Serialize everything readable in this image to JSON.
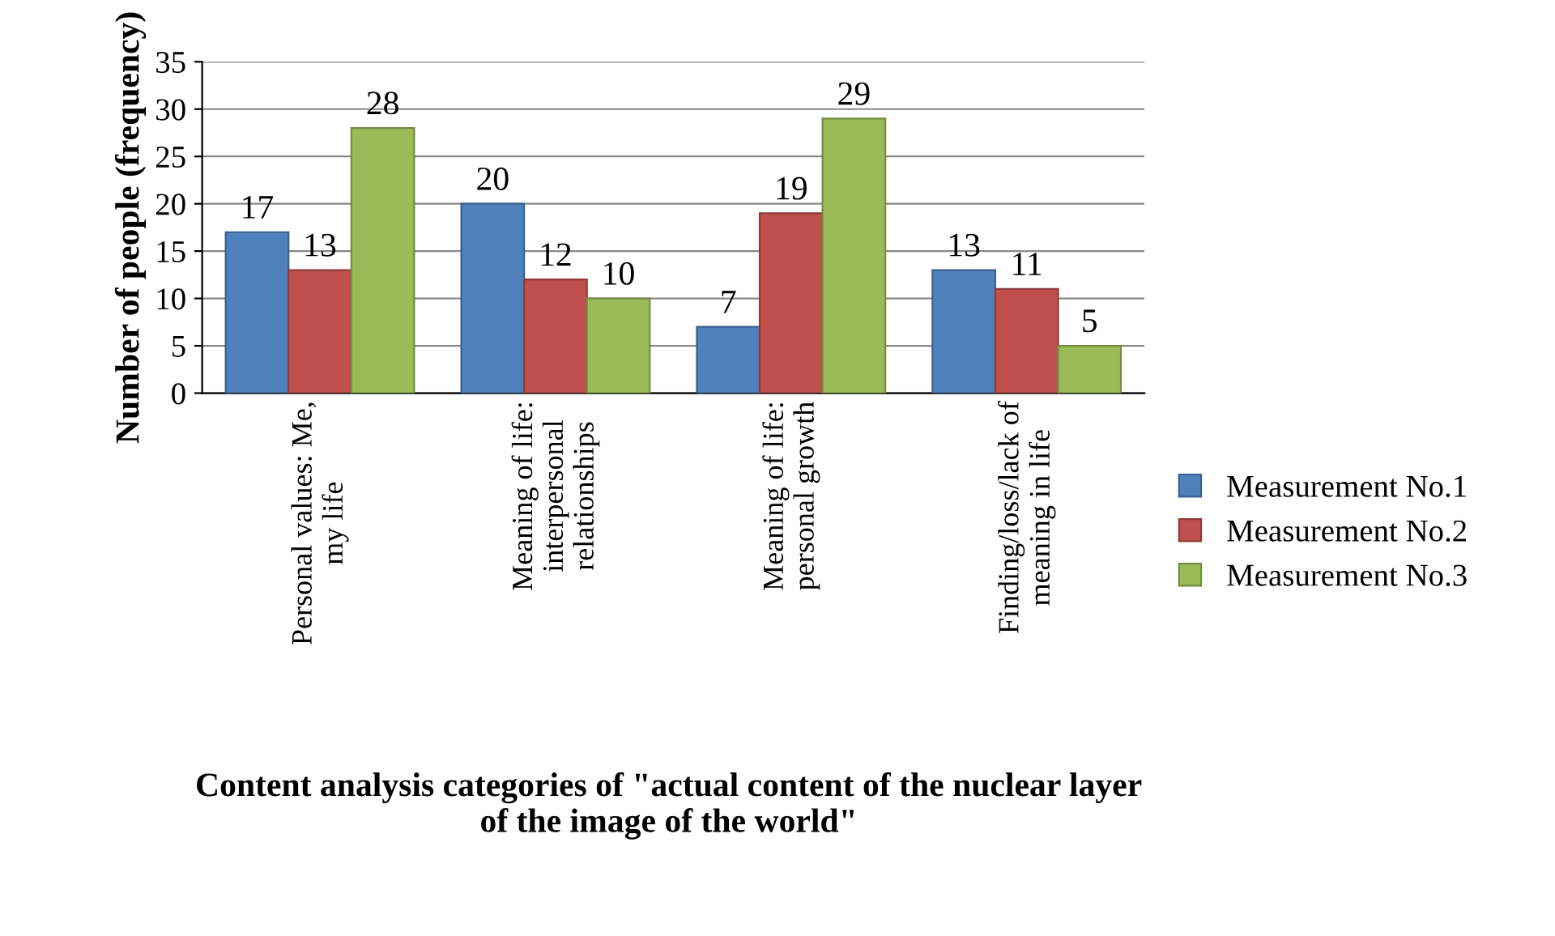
{
  "chart_data": {
    "type": "bar",
    "xlabel": "Content analysis categories of \"actual content of the nuclear layer\nof the image of the world\"",
    "ylabel": "Number of people (frequency)",
    "categories": [
      "Personal values: Me,\nmy life",
      "Meaning of life:\ninterpersonal\nrelationships",
      "Meaning of life:\npersonal growth",
      "Finding/loss/lack of\nmeaning in life"
    ],
    "series": [
      {
        "name": "Measurement No.1",
        "color": "#4f81bd",
        "values": [
          17,
          20,
          7,
          13
        ]
      },
      {
        "name": "Measurement No.2",
        "color": "#c0504d",
        "values": [
          13,
          12,
          19,
          11
        ]
      },
      {
        "name": "Measurement No.3",
        "color": "#9bbb59",
        "values": [
          28,
          10,
          29,
          5
        ]
      }
    ],
    "ylim": [
      0,
      35
    ],
    "yticks": [
      0,
      5,
      10,
      15,
      20,
      25,
      30,
      35
    ],
    "grid": "y",
    "legend": "right",
    "data_labels": true
  }
}
